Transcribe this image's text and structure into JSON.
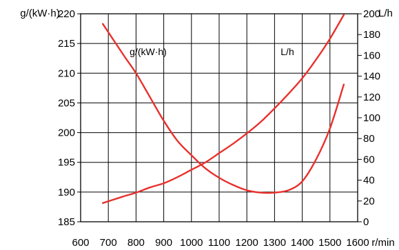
{
  "chart_data": {
    "type": "line",
    "x": {
      "label": "r/min",
      "range": [
        600,
        1600
      ],
      "ticks": [
        600,
        700,
        800,
        900,
        1000,
        1100,
        1200,
        1300,
        1400,
        1500,
        1600
      ],
      "tick_labels": [
        "600",
        "700",
        "800",
        "900",
        "1000",
        "1100",
        "1200",
        "1300",
        "1400",
        "1500",
        "1600"
      ]
    },
    "y_left": {
      "label": "g/(kW·h)",
      "range": [
        185,
        220
      ],
      "ticks": [
        185,
        190,
        195,
        200,
        205,
        210,
        215,
        220
      ],
      "tick_labels": [
        "185",
        "190",
        "195",
        "200",
        "205",
        "210",
        "215",
        "220"
      ]
    },
    "y_right": {
      "label": "L/h",
      "range": [
        0,
        200
      ],
      "ticks": [
        0,
        20,
        40,
        60,
        80,
        100,
        120,
        140,
        160,
        180,
        200
      ],
      "tick_labels": [
        "0",
        "20",
        "40",
        "60",
        "80",
        "100",
        "120",
        "140",
        "160",
        "180",
        "200"
      ]
    },
    "grid": true,
    "series": [
      {
        "name": "g/(kW·h)",
        "axis": "left",
        "color": "#e8302c",
        "x": [
          680,
          720,
          760,
          800,
          850,
          900,
          950,
          1000,
          1050,
          1100,
          1150,
          1200,
          1250,
          1300,
          1350,
          1400,
          1450,
          1500,
          1550
        ],
        "y": [
          218.3,
          215.5,
          212.7,
          210.0,
          206.0,
          202.0,
          198.6,
          196.2,
          194.0,
          192.4,
          191.2,
          190.3,
          189.9,
          189.9,
          190.3,
          191.8,
          195.5,
          200.7,
          208.1
        ]
      },
      {
        "name": "L/h",
        "axis": "right",
        "color": "#e8302c",
        "x": [
          680,
          750,
          800,
          850,
          900,
          950,
          1000,
          1050,
          1100,
          1150,
          1200,
          1250,
          1300,
          1350,
          1400,
          1450,
          1500,
          1550
        ],
        "y": [
          18,
          24,
          28,
          33,
          37,
          43,
          50,
          57,
          66,
          75,
          85,
          96,
          109,
          123,
          138,
          156,
          176,
          199
        ]
      }
    ],
    "annotations": [
      "g/(kW·h)",
      "L/h"
    ]
  }
}
